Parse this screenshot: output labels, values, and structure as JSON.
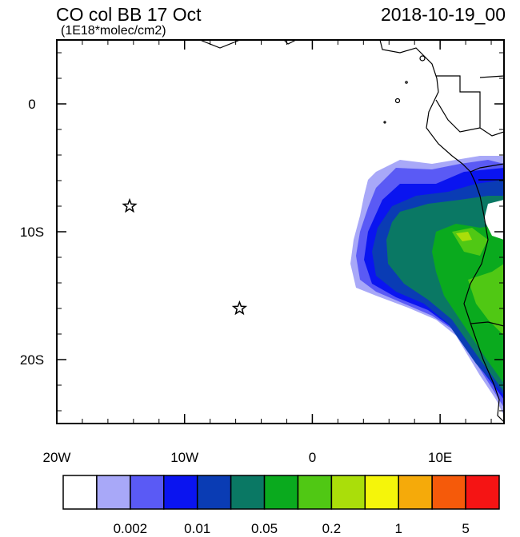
{
  "map": {
    "title": "CO col BB 17 Oct",
    "units": "(1E18*molec/cm2)",
    "date": "2018-10-19_00",
    "lonlim": [
      -20,
      15
    ],
    "latlim": [
      -25,
      5
    ],
    "xticks": [
      {
        "value": -20,
        "label": "20W"
      },
      {
        "value": -10,
        "label": "10W"
      },
      0,
      {
        "value": 10,
        "label": "10E"
      }
    ],
    "yticks": [
      0,
      {
        "value": -10,
        "label": "10S"
      },
      {
        "value": -20,
        "label": "20S"
      }
    ],
    "markers": [
      {
        "lon": -14.3,
        "lat": -8
      },
      {
        "lon": -5.7,
        "lat": -16
      }
    ],
    "colorbar": {
      "colors": [
        "#ffffff",
        "#a8a8f8",
        "#5a5af5",
        "#0a14f0",
        "#0a3cb4",
        "#0a7864",
        "#0aaa1e",
        "#50c814",
        "#aade0a",
        "#f5f50a",
        "#f5aa0a",
        "#f55a0a",
        "#f51414"
      ],
      "labels": [
        "0.002",
        "0.01",
        "0.05",
        "0.2",
        "1",
        "5"
      ]
    }
  }
}
